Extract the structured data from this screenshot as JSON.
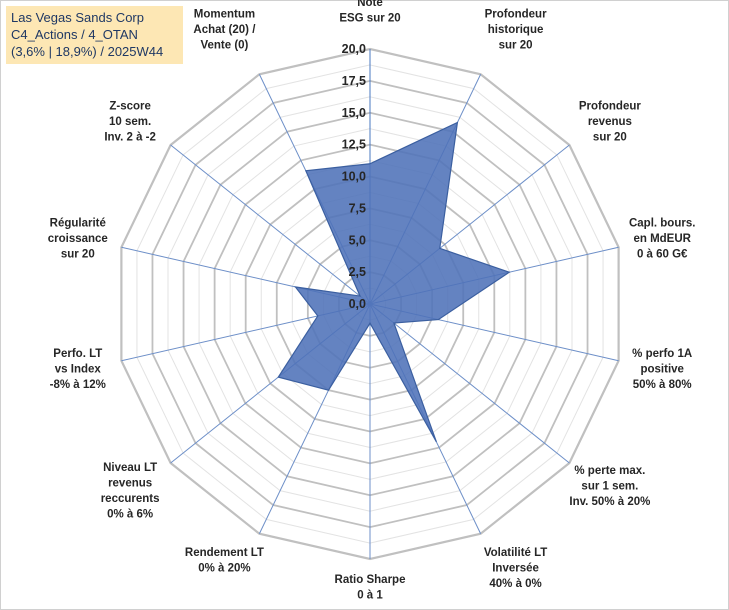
{
  "info_box": {
    "line1": "Las Vegas Sands Corp",
    "line2": "C4_Actions / 4_OTAN",
    "line3": "(3,6% | 18,9%) / 2025W44"
  },
  "chart_data": {
    "type": "radar",
    "title": "",
    "rmin": 0,
    "rmax": 20,
    "ticks": [
      "0,0",
      "2,5",
      "5,0",
      "7,5",
      "10,0",
      "12,5",
      "15,0",
      "17,5",
      "20,0"
    ],
    "tick_values": [
      0,
      2.5,
      5,
      7.5,
      10,
      12.5,
      15,
      17.5,
      20
    ],
    "minor_grid_step": 1.25,
    "grid": true,
    "legend": "none",
    "fill_color": "#4f72b8",
    "line_color": "#3b5fa0",
    "grid_color": "#c0c0c0",
    "minor_grid_color": "#e3e3e3",
    "categories": [
      [
        "Note",
        "ESG sur 20"
      ],
      [
        "Profondeur",
        "historique",
        "sur 20"
      ],
      [
        "Profondeur",
        "revenus",
        "sur 20"
      ],
      [
        "Capl. bours.",
        "en MdEUR",
        "0 à 60 G€"
      ],
      [
        "% perfo 1A",
        "positive",
        "50% à 80%"
      ],
      [
        "% perte max.",
        "sur 1 sem.",
        "Inv. 50% à 20%"
      ],
      [
        "Volatilité LT",
        "Inversée",
        "40% à 0%"
      ],
      [
        "Ratio Sharpe",
        "0 à 1"
      ],
      [
        "Rendement LT",
        "0% à 20%"
      ],
      [
        "Niveau LT",
        "revenus",
        "reccurents",
        "0% à 6%"
      ],
      [
        "Perfo. LT",
        "vs Index",
        "-8% à 12%"
      ],
      [
        "Régularité",
        "croissance",
        "sur 20"
      ],
      [
        "Z-score",
        "10 sem.",
        "Inv. 2 à -2"
      ],
      [
        "Momentum",
        "Achat (20) /",
        "Vente (0)"
      ]
    ],
    "series": [
      {
        "values": [
          11.0,
          15.8,
          7.0,
          11.2,
          5.5,
          2.4,
          12.0,
          1.5,
          7.5,
          9.2,
          4.2,
          6.0,
          1.0,
          11.6
        ]
      }
    ]
  }
}
